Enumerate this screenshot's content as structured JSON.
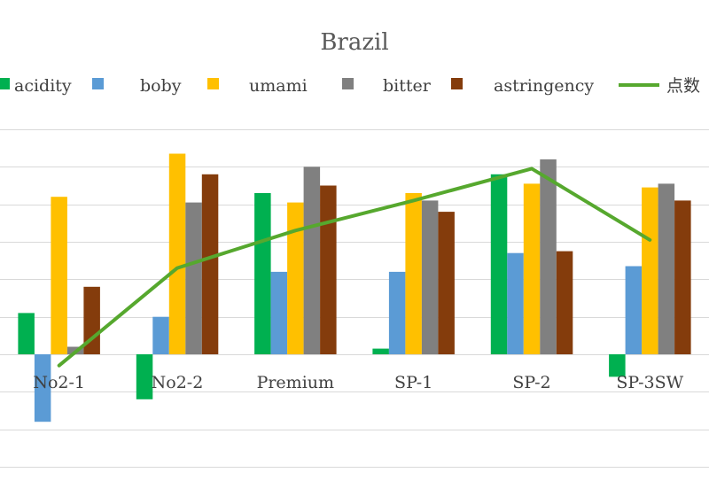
{
  "chart_data": {
    "type": "bar",
    "title": "Brazil",
    "categories": [
      "No2-1",
      "No2-2",
      "Premium",
      "SP-1",
      "SP-2",
      "SP-3SW"
    ],
    "series": [
      {
        "name": "acidity",
        "kind": "bar",
        "color": "#00b050",
        "values": [
          1.1,
          -1.2,
          4.3,
          0.15,
          4.8,
          -0.6
        ]
      },
      {
        "name": "boby",
        "kind": "bar",
        "color": "#5b9bd5",
        "values": [
          -1.8,
          1.0,
          2.2,
          2.2,
          2.7,
          2.35
        ]
      },
      {
        "name": "umami",
        "kind": "bar",
        "color": "#ffc000",
        "values": [
          4.2,
          5.35,
          4.05,
          4.3,
          4.55,
          4.45
        ]
      },
      {
        "name": "bitter",
        "kind": "bar",
        "color": "#808080",
        "values": [
          0.2,
          4.05,
          5.0,
          4.1,
          5.2,
          4.55
        ]
      },
      {
        "name": "astringency",
        "kind": "bar",
        "color": "#843c0c",
        "values": [
          1.8,
          4.8,
          4.5,
          3.8,
          2.75,
          4.1
        ]
      },
      {
        "name": "点数",
        "kind": "line",
        "color": "#56a82e",
        "values": [
          -0.3,
          2.3,
          3.3,
          4.1,
          4.95,
          3.05
        ]
      }
    ],
    "ylim": [
      -3,
      6
    ],
    "grid": true,
    "legend": "top",
    "xlabel": "",
    "ylabel": ""
  }
}
